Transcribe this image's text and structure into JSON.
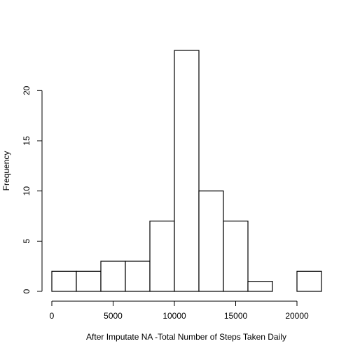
{
  "chart_data": {
    "type": "bar",
    "title": "",
    "xlabel": "After Imputate NA -Total Number of Steps Taken Daily",
    "ylabel": "Frequency",
    "bins": [
      {
        "start": 0,
        "end": 2000,
        "count": 2
      },
      {
        "start": 2000,
        "end": 4000,
        "count": 2
      },
      {
        "start": 4000,
        "end": 6000,
        "count": 3
      },
      {
        "start": 6000,
        "end": 8000,
        "count": 3
      },
      {
        "start": 8000,
        "end": 10000,
        "count": 7
      },
      {
        "start": 10000,
        "end": 12000,
        "count": 24
      },
      {
        "start": 12000,
        "end": 14000,
        "count": 10
      },
      {
        "start": 14000,
        "end": 16000,
        "count": 7
      },
      {
        "start": 16000,
        "end": 18000,
        "count": 1
      },
      {
        "start": 18000,
        "end": 20000,
        "count": 0
      },
      {
        "start": 20000,
        "end": 22000,
        "count": 2
      }
    ],
    "xlim": [
      0,
      22000
    ],
    "ylim": [
      0,
      24
    ],
    "x_ticks": [
      0,
      5000,
      10000,
      15000,
      20000
    ],
    "y_ticks": [
      0,
      5,
      10,
      15,
      20
    ],
    "grid": false,
    "legend": "none"
  }
}
